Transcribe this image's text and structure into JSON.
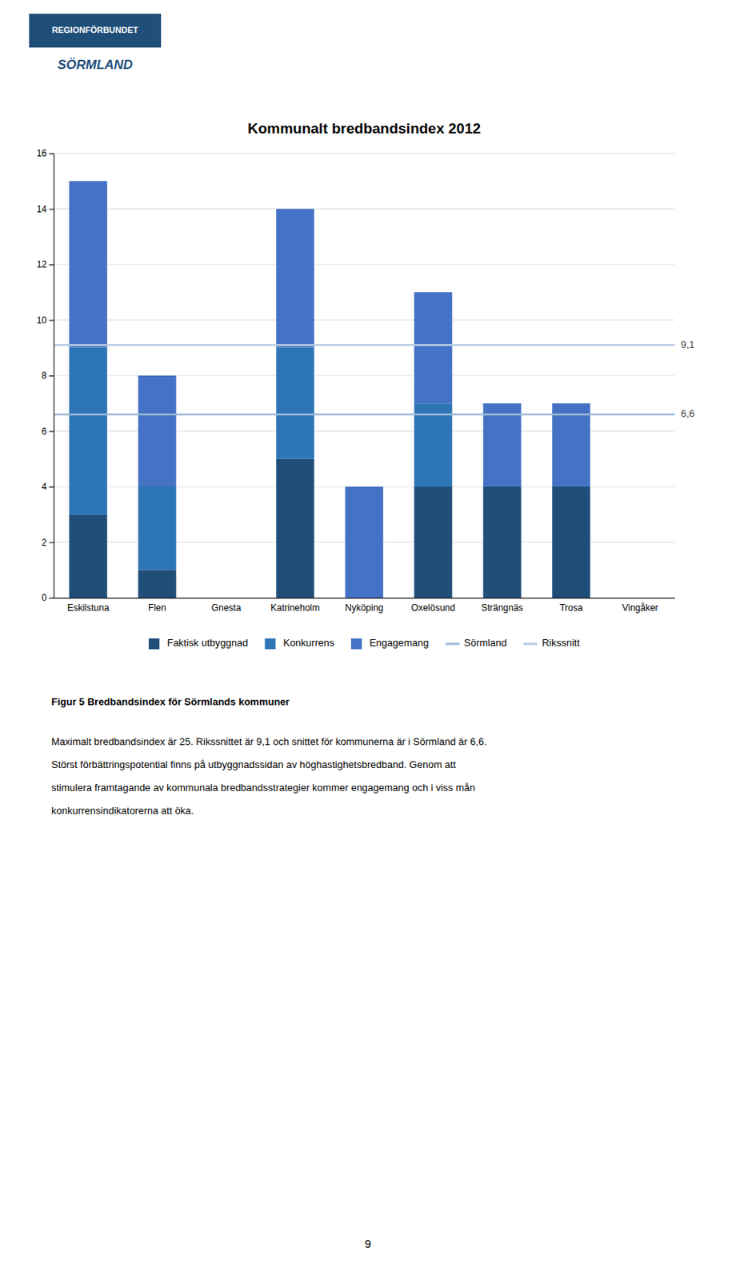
{
  "chart_data": {
    "type": "bar",
    "stacked": true,
    "title": "Kommunalt bredbandsindex 2012",
    "categories": [
      "Eskilstuna",
      "Flen",
      "Gnesta",
      "Katrineholm",
      "Nyköping",
      "Oxelösund",
      "Strängnäs",
      "Trosa",
      "Vingåker"
    ],
    "series": [
      {
        "name": "Faktisk utbyggnad",
        "color": "#1F4E79",
        "values": [
          3.0,
          1.0,
          0.0,
          5.0,
          0.0,
          4.0,
          4.0,
          4.0,
          0.0
        ]
      },
      {
        "name": "Konkurrens",
        "color": "#2E75B6",
        "values": [
          6.0,
          3.0,
          0.0,
          4.0,
          0.0,
          3.0,
          0.0,
          0.0,
          0.0
        ]
      },
      {
        "name": "Engagemang",
        "color": "#4472C4",
        "values": [
          6.0,
          4.0,
          0.0,
          5.0,
          4.0,
          4.0,
          3.0,
          3.0,
          0.0
        ]
      }
    ],
    "reference_lines": [
      {
        "name": "Sörmland",
        "value": 6.6,
        "label": "6,6",
        "color": "#9DBAD4"
      },
      {
        "name": "Rikssnitt",
        "value": 9.1,
        "label": "9,1",
        "color": "#B8CCE4"
      }
    ],
    "ylim": [
      0,
      16
    ],
    "yticks": [
      0,
      2,
      4,
      6,
      8,
      10,
      12,
      14,
      16
    ],
    "grid": true,
    "legend": "bottom"
  },
  "logo": [
    "REGIONFÖRBUNDET",
    "SÖRMLAND"
  ],
  "figure_caption": "Figur 5 Bredbandsindex för Sörmlands kommuner",
  "body_text": [
    "Maximalt bredbandsindex är 25. Rikssnittet är 9,1 och snittet för kommunerna är i Sörmland är 6,6.",
    "Störst förbättringspotential finns på utbyggnadssidan av höghastighetsbredband. Genom att",
    "stimulera framtagande av kommunala bredbandsstrategier kommer engagemang och i viss mån",
    "konkurrensindikatorerna att öka."
  ],
  "page_number": "9"
}
